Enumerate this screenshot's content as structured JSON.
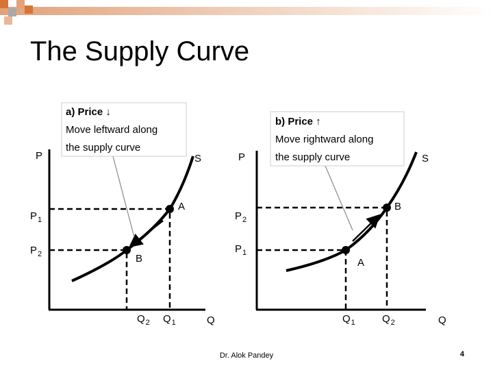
{
  "title": "The Supply Curve",
  "left_panel": {
    "callout": [
      "a)  Price ↓",
      "Move leftward along",
      "the supply curve"
    ],
    "y_axis": "P",
    "x_axis": "Q",
    "curve": "S",
    "price_labels": [
      {
        "base": "P",
        "sub": "1"
      },
      {
        "base": "P",
        "sub": "2"
      }
    ],
    "quantity_labels": [
      {
        "base": "Q",
        "sub": "2"
      },
      {
        "base": "Q",
        "sub": "1"
      }
    ],
    "points": [
      "A",
      "B"
    ]
  },
  "right_panel": {
    "callout": [
      "b)  Price ↑",
      "Move rightward along",
      "the supply curve"
    ],
    "y_axis": "P",
    "x_axis": "Q",
    "curve": "S",
    "price_labels": [
      {
        "base": "P",
        "sub": "2"
      },
      {
        "base": "P",
        "sub": "1"
      }
    ],
    "quantity_labels": [
      {
        "base": "Q",
        "sub": "1"
      },
      {
        "base": "Q",
        "sub": "2"
      }
    ],
    "points": [
      "B",
      "A"
    ]
  },
  "footer": {
    "author": "Dr. Alok Pandey",
    "page": "4"
  }
}
